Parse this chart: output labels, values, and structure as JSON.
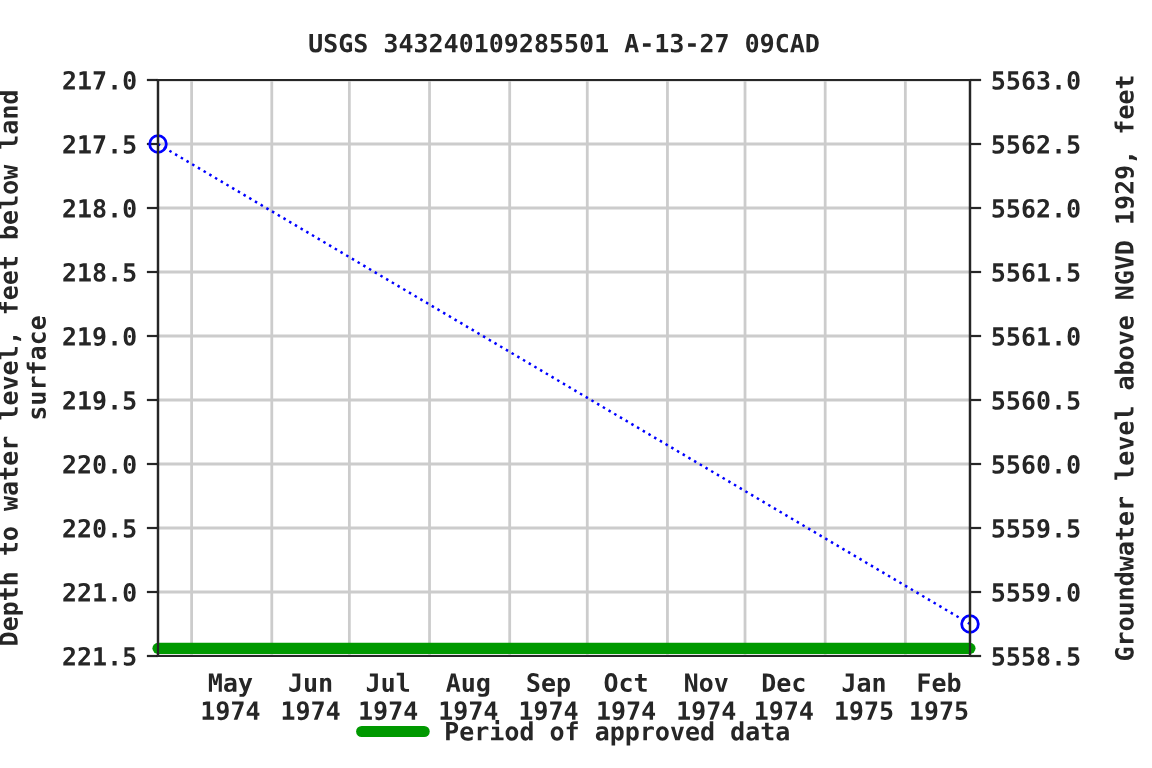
{
  "chart_data": {
    "type": "line",
    "title": "USGS 343240109285501 A-13-27 09CAD",
    "ylabel": "Depth to water level, feet below land\nsurface",
    "y2label": "Groundwater level above NGVD 1929, feet",
    "series": [
      {
        "name": null,
        "color": "#0000ff",
        "x": [
          "1974-04-18",
          "1975-02-26"
        ],
        "values": [
          217.5,
          221.25
        ],
        "marker": "circle",
        "line_style": "dotted"
      },
      {
        "name": "Period of approved data",
        "color": "#009900",
        "x": [
          "1974-04-18",
          "1975-02-26"
        ],
        "values": [
          221.44,
          221.44
        ],
        "marker": "none",
        "line_style": "solid"
      }
    ],
    "xlim": [
      "1974-04-18",
      "1975-02-26"
    ],
    "xticks": [
      {
        "value": "1974-05-01",
        "label": null
      },
      {
        "value": "1974-06-01",
        "label": null
      },
      {
        "value": "1974-07-01",
        "label": null
      },
      {
        "value": "1974-08-01",
        "label": null
      },
      {
        "value": "1974-09-01",
        "label": null
      },
      {
        "value": "1974-10-01",
        "label": null
      },
      {
        "value": "1974-11-01",
        "label": null
      },
      {
        "value": "1974-12-01",
        "label": null
      },
      {
        "value": "1975-01-01",
        "label": null
      },
      {
        "value": "1975-02-01",
        "label": null
      },
      {
        "value": "1974-05-16",
        "label": "May\n1974"
      },
      {
        "value": "1974-06-16",
        "label": "Jun\n1974"
      },
      {
        "value": "1974-07-16",
        "label": "Jul\n1974"
      },
      {
        "value": "1974-08-16",
        "label": "Aug\n1974"
      },
      {
        "value": "1974-09-16",
        "label": "Sep\n1974"
      },
      {
        "value": "1974-10-16",
        "label": "Oct\n1974"
      },
      {
        "value": "1974-11-16",
        "label": "Nov\n1974"
      },
      {
        "value": "1974-12-16",
        "label": "Dec\n1974"
      },
      {
        "value": "1975-01-16",
        "label": "Jan\n1975"
      },
      {
        "value": "1975-02-14",
        "label": "Feb\n1975"
      }
    ],
    "ylim": [
      221.5,
      217.0
    ],
    "yticks": [
      {
        "value": 217.0,
        "label": "217.0"
      },
      {
        "value": 217.5,
        "label": "217.5"
      },
      {
        "value": 218.0,
        "label": "218.0"
      },
      {
        "value": 218.5,
        "label": "218.5"
      },
      {
        "value": 219.0,
        "label": "219.0"
      },
      {
        "value": 219.5,
        "label": "219.5"
      },
      {
        "value": 220.0,
        "label": "220.0"
      },
      {
        "value": 220.5,
        "label": "220.5"
      },
      {
        "value": 221.0,
        "label": "221.0"
      },
      {
        "value": 221.5,
        "label": "221.5"
      }
    ],
    "y2lim": [
      5558.5,
      5563.0
    ],
    "y2ticks": [
      {
        "value": 5558.5,
        "label": "5558.5"
      },
      {
        "value": 5559.0,
        "label": "5559.0"
      },
      {
        "value": 5559.5,
        "label": "5559.5"
      },
      {
        "value": 5560.0,
        "label": "5560.0"
      },
      {
        "value": 5560.5,
        "label": "5560.5"
      },
      {
        "value": 5561.0,
        "label": "5561.0"
      },
      {
        "value": 5561.5,
        "label": "5561.5"
      },
      {
        "value": 5562.0,
        "label": "5562.0"
      },
      {
        "value": 5562.5,
        "label": "5562.5"
      },
      {
        "value": 5563.0,
        "label": "5563.0"
      }
    ],
    "grid": true,
    "legend": "bottom"
  }
}
